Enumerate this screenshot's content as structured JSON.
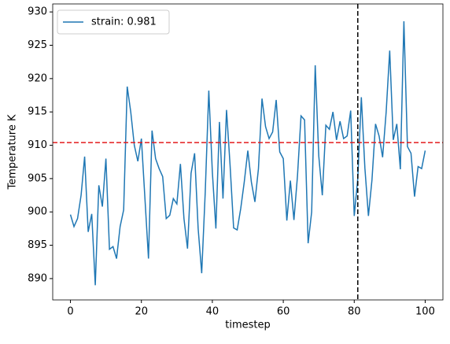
{
  "chart_data": {
    "type": "line",
    "x": [
      0,
      1,
      2,
      3,
      4,
      5,
      6,
      7,
      8,
      9,
      10,
      11,
      12,
      13,
      14,
      15,
      16,
      17,
      18,
      19,
      20,
      21,
      22,
      23,
      24,
      25,
      26,
      27,
      28,
      29,
      30,
      31,
      32,
      33,
      34,
      35,
      36,
      37,
      38,
      39,
      40,
      41,
      42,
      43,
      44,
      45,
      46,
      47,
      48,
      49,
      50,
      51,
      52,
      53,
      54,
      55,
      56,
      57,
      58,
      59,
      60,
      61,
      62,
      63,
      64,
      65,
      66,
      67,
      68,
      69,
      70,
      71,
      72,
      73,
      74,
      75,
      76,
      77,
      78,
      79,
      80,
      81,
      82,
      83,
      84,
      85,
      86,
      87,
      88,
      89,
      90,
      91,
      92,
      93,
      94,
      95,
      96,
      97,
      98,
      99,
      100
    ],
    "series": [
      {
        "name": "strain: 0.981",
        "color": "#1f77b4",
        "values": [
          899.6,
          897.8,
          899,
          902.5,
          908.3,
          897,
          899.7,
          889,
          904,
          900.8,
          908,
          894.4,
          894.8,
          893,
          897.8,
          900.3,
          918.8,
          915,
          910,
          907.6,
          911,
          902,
          893,
          912.2,
          908,
          906.5,
          905.3,
          899,
          899.5,
          902,
          901.2,
          907.2,
          899,
          894.5,
          905.8,
          908.8,
          897.5,
          890.8,
          903,
          918.2,
          906,
          897.5,
          913.5,
          902,
          915.3,
          907,
          897.6,
          897.3,
          900.5,
          904.5,
          909.2,
          904.5,
          901.5,
          906.5,
          917,
          912.8,
          911,
          912,
          916.8,
          909,
          908,
          898.7,
          904.7,
          898.8,
          905.4,
          914.4,
          913.8,
          895.3,
          900,
          922,
          908.4,
          902.5,
          913,
          912.4,
          915,
          910.8,
          913.6,
          911,
          911.4,
          915.2,
          899.4,
          905,
          917.2,
          906.6,
          899.4,
          904.8,
          913.2,
          911.4,
          908.2,
          915,
          924.2,
          910.8,
          913.2,
          906.4,
          928.6,
          909.8,
          908.8,
          902.3,
          906.8,
          906.5,
          909.2
        ]
      }
    ],
    "x_label": "timestep",
    "y_label": "Temperature K",
    "xlim": [
      -5,
      105
    ],
    "ylim": [
      886.8,
      931.2
    ],
    "xticks": [
      0,
      20,
      40,
      60,
      80,
      100
    ],
    "yticks": [
      890,
      895,
      900,
      905,
      910,
      915,
      920,
      925,
      930
    ],
    "hline": 910.4,
    "hline_color": "#e31a1c",
    "vline": 81,
    "vline_color": "#000000",
    "legend": "upper left"
  }
}
